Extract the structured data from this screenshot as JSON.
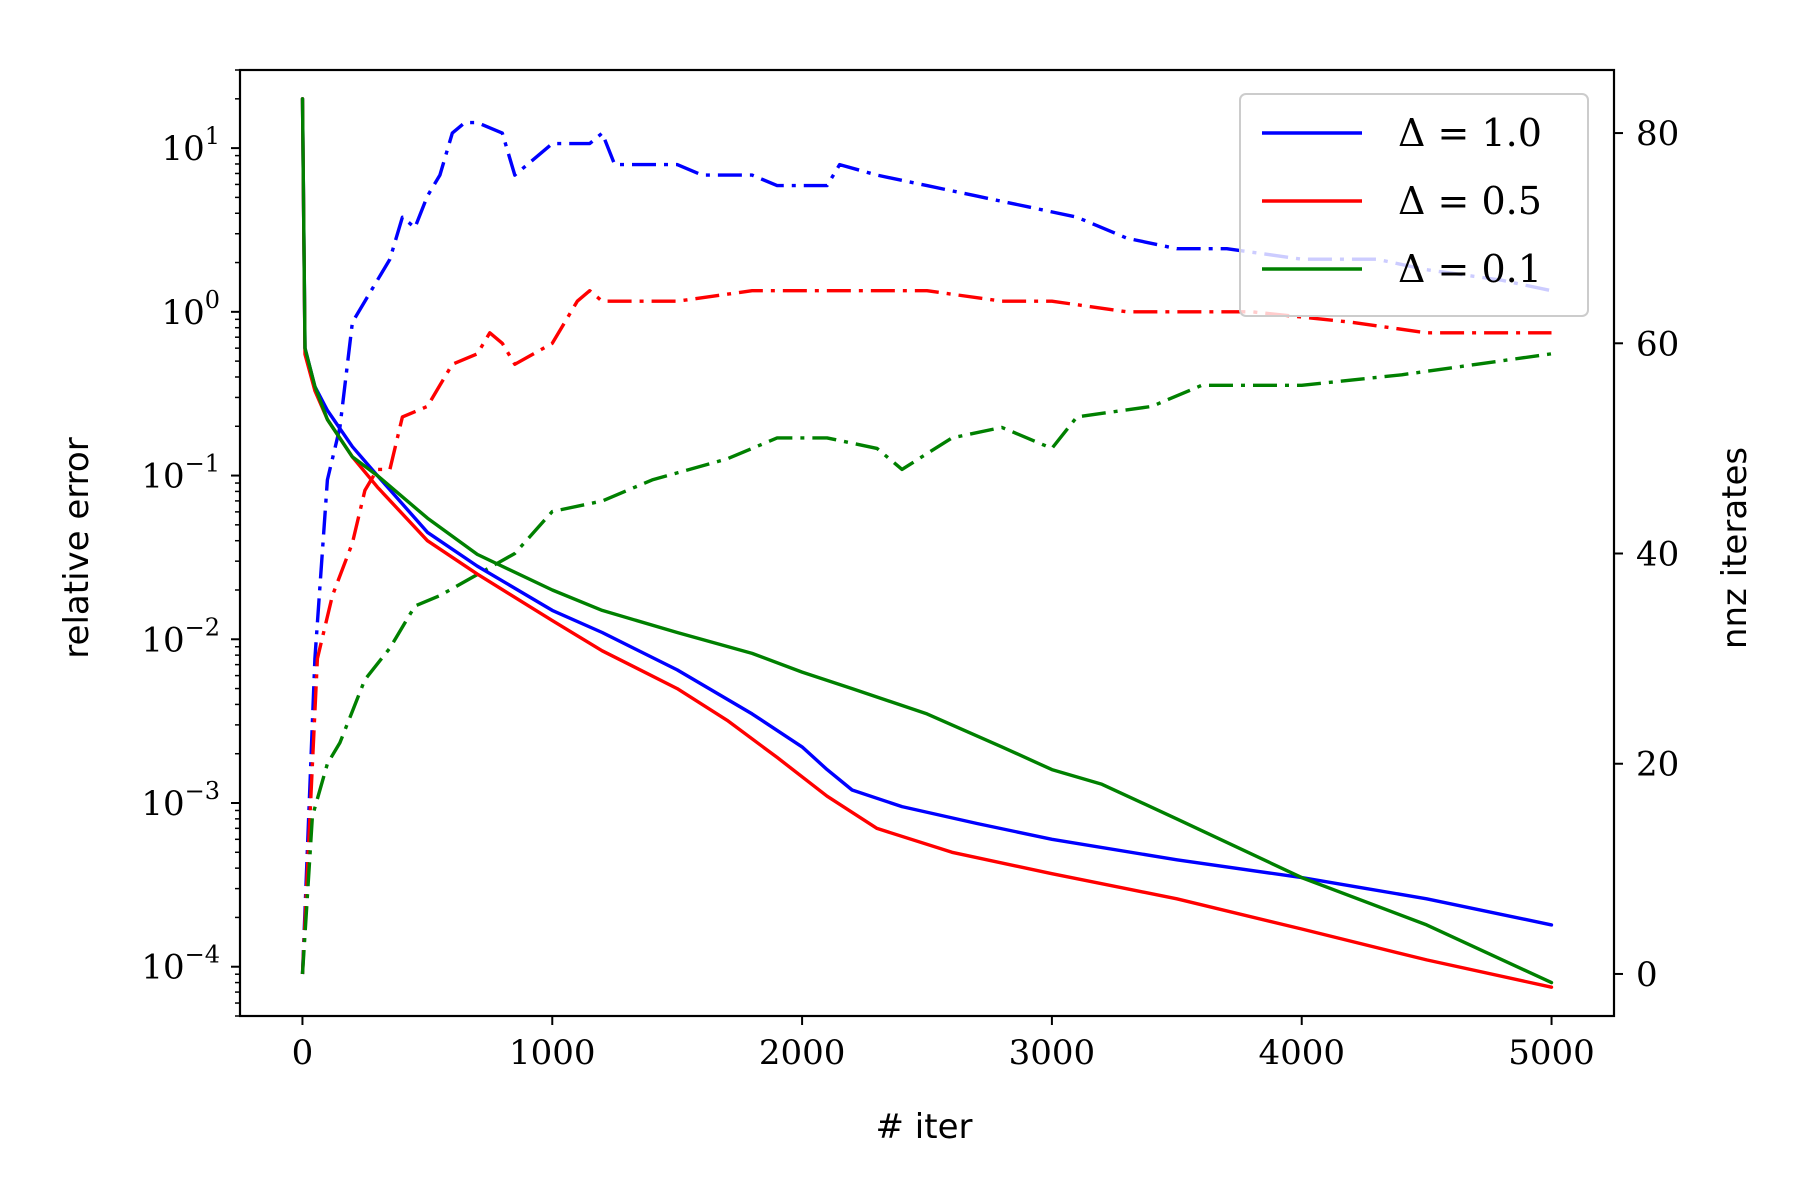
{
  "chart_data": {
    "type": "line",
    "xlabel": "# iter",
    "ylabel": "relative error",
    "y2label": "nnz iterates",
    "xlim": [
      -250,
      5250
    ],
    "ylim": [
      5e-05,
      30
    ],
    "yscale": "log",
    "y2lim": [
      -4,
      86
    ],
    "grid": false,
    "legend_placement": "top-right",
    "x_ticks": [
      0,
      1000,
      2000,
      3000,
      4000,
      5000
    ],
    "x_tick_labels": [
      "0",
      "1000",
      "2000",
      "3000",
      "4000",
      "5000"
    ],
    "y_ticks": [
      0.0001,
      0.001,
      0.01,
      0.1,
      1,
      10
    ],
    "y_tick_labels": [
      {
        "base": "10",
        "exp": "−4"
      },
      {
        "base": "10",
        "exp": "−3"
      },
      {
        "base": "10",
        "exp": "−2"
      },
      {
        "base": "10",
        "exp": "−1"
      },
      {
        "base": "10",
        "exp": "0"
      },
      {
        "base": "10",
        "exp": "1"
      }
    ],
    "y2_ticks": [
      0,
      20,
      40,
      60,
      80
    ],
    "y2_tick_labels": [
      "0",
      "20",
      "40",
      "60",
      "80"
    ],
    "series": [
      {
        "name": "Δ = 1.0",
        "color": "#0000ff",
        "error": [
          [
            0,
            20
          ],
          [
            10,
            0.6
          ],
          [
            50,
            0.35
          ],
          [
            100,
            0.25
          ],
          [
            200,
            0.15
          ],
          [
            300,
            0.1
          ],
          [
            500,
            0.045
          ],
          [
            700,
            0.028
          ],
          [
            1000,
            0.015
          ],
          [
            1200,
            0.011
          ],
          [
            1500,
            0.0065
          ],
          [
            1800,
            0.0035
          ],
          [
            2000,
            0.0022
          ],
          [
            2100,
            0.0016
          ],
          [
            2200,
            0.0012
          ],
          [
            2400,
            0.00095
          ],
          [
            2700,
            0.00075
          ],
          [
            3000,
            0.0006
          ],
          [
            3500,
            0.00045
          ],
          [
            4000,
            0.00035
          ],
          [
            4500,
            0.00026
          ],
          [
            5000,
            0.00018
          ]
        ],
        "nnz": [
          [
            0,
            0
          ],
          [
            50,
            30
          ],
          [
            100,
            47
          ],
          [
            150,
            52
          ],
          [
            200,
            62
          ],
          [
            250,
            64
          ],
          [
            300,
            66
          ],
          [
            350,
            68
          ],
          [
            400,
            72
          ],
          [
            450,
            71
          ],
          [
            500,
            74
          ],
          [
            550,
            76
          ],
          [
            600,
            80
          ],
          [
            650,
            81
          ],
          [
            700,
            81
          ],
          [
            800,
            80
          ],
          [
            850,
            76
          ],
          [
            1000,
            79
          ],
          [
            1150,
            79
          ],
          [
            1200,
            80
          ],
          [
            1250,
            77
          ],
          [
            1500,
            77
          ],
          [
            1600,
            76
          ],
          [
            1800,
            76
          ],
          [
            1900,
            75
          ],
          [
            2100,
            75
          ],
          [
            2150,
            77
          ],
          [
            2300,
            76
          ],
          [
            2500,
            75
          ],
          [
            2700,
            74
          ],
          [
            2900,
            73
          ],
          [
            3100,
            72
          ],
          [
            3300,
            70
          ],
          [
            3500,
            69
          ],
          [
            3700,
            69
          ],
          [
            4000,
            68
          ],
          [
            4300,
            68
          ],
          [
            4500,
            67
          ],
          [
            4800,
            66
          ],
          [
            5000,
            65
          ]
        ]
      },
      {
        "name": "Δ = 0.5",
        "color": "#ff0000",
        "error": [
          [
            0,
            20
          ],
          [
            10,
            0.55
          ],
          [
            50,
            0.33
          ],
          [
            100,
            0.22
          ],
          [
            200,
            0.13
          ],
          [
            300,
            0.085
          ],
          [
            500,
            0.04
          ],
          [
            700,
            0.025
          ],
          [
            1000,
            0.013
          ],
          [
            1200,
            0.0085
          ],
          [
            1500,
            0.005
          ],
          [
            1700,
            0.0032
          ],
          [
            1900,
            0.0019
          ],
          [
            2100,
            0.0011
          ],
          [
            2300,
            0.0007
          ],
          [
            2600,
            0.0005
          ],
          [
            3000,
            0.00037
          ],
          [
            3500,
            0.00026
          ],
          [
            4000,
            0.00017
          ],
          [
            4500,
            0.00011
          ],
          [
            5000,
            7.5e-05
          ]
        ],
        "nnz": [
          [
            0,
            0
          ],
          [
            60,
            30
          ],
          [
            120,
            36
          ],
          [
            200,
            41
          ],
          [
            250,
            46
          ],
          [
            300,
            48
          ],
          [
            350,
            48
          ],
          [
            400,
            53
          ],
          [
            500,
            54
          ],
          [
            550,
            56
          ],
          [
            600,
            58
          ],
          [
            700,
            59
          ],
          [
            750,
            61
          ],
          [
            800,
            60
          ],
          [
            850,
            58
          ],
          [
            1000,
            60
          ],
          [
            1100,
            64
          ],
          [
            1150,
            65
          ],
          [
            1200,
            64
          ],
          [
            1500,
            64
          ],
          [
            1800,
            65
          ],
          [
            2000,
            65
          ],
          [
            2200,
            65
          ],
          [
            2500,
            65
          ],
          [
            2800,
            64
          ],
          [
            3000,
            64
          ],
          [
            3300,
            63
          ],
          [
            3800,
            63
          ],
          [
            4200,
            62
          ],
          [
            4500,
            61
          ],
          [
            5000,
            61
          ]
        ]
      },
      {
        "name": "Δ = 0.1",
        "color": "#008000",
        "error": [
          [
            0,
            20
          ],
          [
            10,
            0.6
          ],
          [
            50,
            0.35
          ],
          [
            100,
            0.22
          ],
          [
            200,
            0.13
          ],
          [
            300,
            0.1
          ],
          [
            500,
            0.055
          ],
          [
            700,
            0.033
          ],
          [
            1000,
            0.02
          ],
          [
            1200,
            0.015
          ],
          [
            1500,
            0.011
          ],
          [
            1800,
            0.0082
          ],
          [
            2000,
            0.0063
          ],
          [
            2200,
            0.005
          ],
          [
            2500,
            0.0035
          ],
          [
            2800,
            0.0022
          ],
          [
            3000,
            0.0016
          ],
          [
            3200,
            0.0013
          ],
          [
            3500,
            0.0008
          ],
          [
            4000,
            0.00035
          ],
          [
            4500,
            0.00018
          ],
          [
            5000,
            8e-05
          ]
        ],
        "nnz": [
          [
            0,
            0
          ],
          [
            40,
            15
          ],
          [
            100,
            20
          ],
          [
            150,
            22
          ],
          [
            200,
            25
          ],
          [
            250,
            28
          ],
          [
            350,
            31
          ],
          [
            450,
            35
          ],
          [
            550,
            36
          ],
          [
            700,
            38
          ],
          [
            850,
            40
          ],
          [
            1000,
            44
          ],
          [
            1200,
            45
          ],
          [
            1300,
            46
          ],
          [
            1400,
            47
          ],
          [
            1700,
            49
          ],
          [
            1900,
            51
          ],
          [
            2100,
            51
          ],
          [
            2300,
            50
          ],
          [
            2400,
            48
          ],
          [
            2600,
            51
          ],
          [
            2800,
            52
          ],
          [
            3000,
            50
          ],
          [
            3100,
            53
          ],
          [
            3400,
            54
          ],
          [
            3600,
            56
          ],
          [
            4000,
            56
          ],
          [
            4400,
            57
          ],
          [
            4700,
            58
          ],
          [
            5000,
            59
          ]
        ]
      }
    ]
  }
}
